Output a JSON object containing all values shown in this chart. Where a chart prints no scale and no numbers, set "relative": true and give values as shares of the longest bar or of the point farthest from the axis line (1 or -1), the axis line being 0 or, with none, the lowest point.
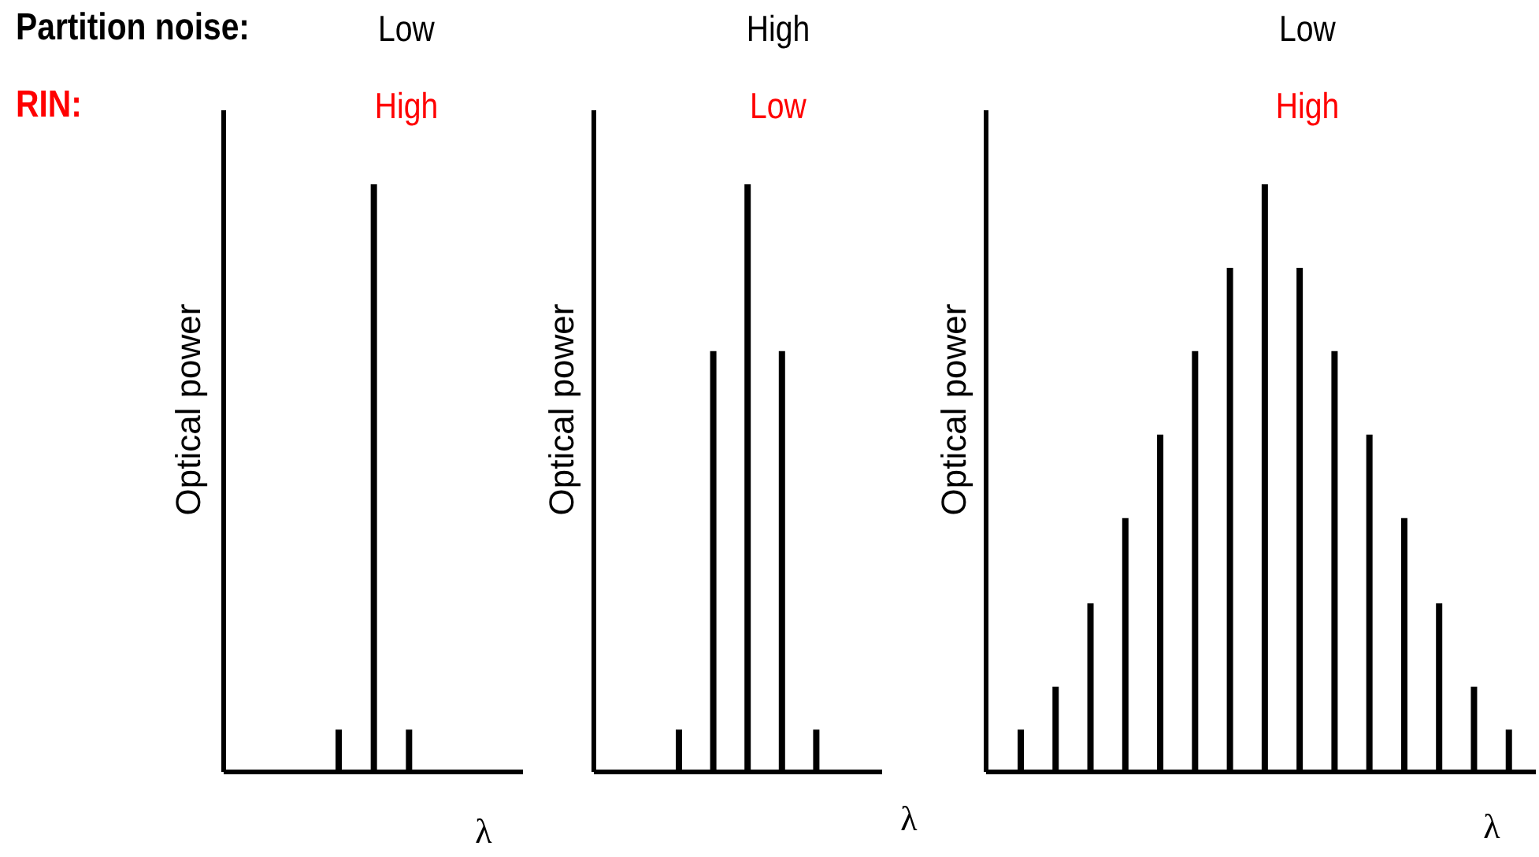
{
  "chart_data": [
    {
      "type": "bar",
      "title": "Low",
      "subtitle": "High",
      "annotations": [
        "Partition noise:",
        "RIN:"
      ],
      "xlabel": "λ",
      "ylabel": "Optical power",
      "relative": true,
      "categories": [
        null,
        null,
        null
      ],
      "series": [
        {
          "color": "#000000",
          "values": [
            0.072,
            1,
            0.072
          ]
        }
      ],
      "grid": false,
      "legend": false
    },
    {
      "type": "bar",
      "title": "High",
      "subtitle": "Low",
      "xlabel": "λ",
      "ylabel": "Optical power",
      "relative": true,
      "categories": [
        null,
        null,
        null,
        null,
        null
      ],
      "series": [
        {
          "color": "#000000",
          "values": [
            0.072,
            0.716,
            1,
            0.716,
            0.072
          ]
        }
      ],
      "grid": false,
      "legend": false
    },
    {
      "type": "bar",
      "title": "Low",
      "subtitle": "High",
      "xlabel": "λ",
      "ylabel": "Optical power",
      "relative": true,
      "categories": [
        null,
        null,
        null,
        null,
        null,
        null,
        null,
        null,
        null,
        null,
        null,
        null,
        null,
        null,
        null
      ],
      "series": [
        {
          "color": "#000000",
          "values": [
            0.072,
            0.145,
            0.287,
            0.432,
            0.574,
            0.716,
            0.858,
            1,
            0.858,
            0.716,
            0.574,
            0.432,
            0.287,
            0.145,
            0.072
          ]
        }
      ],
      "grid": false,
      "legend": false
    }
  ]
}
